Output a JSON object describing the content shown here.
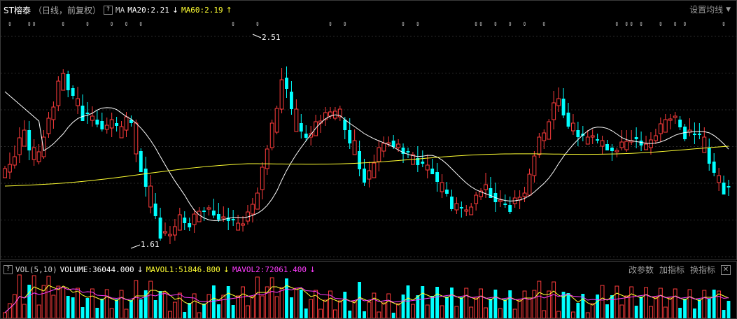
{
  "header": {
    "stock_name": "ST榕泰",
    "period_info": "（日线，前复权）",
    "help_icon": "?",
    "indicator": "MA",
    "ma20_label": "MA20:2.21",
    "ma20_arrow": "↓",
    "ma60_label": "MA60:2.19",
    "ma60_arrow": "↑",
    "settings_label": "设置均线"
  },
  "price_annotations": {
    "high_label": "2.51",
    "low_label": "1.61"
  },
  "volume_header": {
    "help_icon": "?",
    "indicator": "VOL(5,10)",
    "volume_label": "VOLUME:36044.000",
    "volume_arrow": "↓",
    "mavol1_label": "MAVOL1:51846.800",
    "mavol1_arrow": "↓",
    "mavol2_label": "MAVOL2:72061.400",
    "mavol2_arrow": "↓",
    "modify_params": "改参数",
    "add_indicator": "加指标",
    "switch_indicator": "换指标",
    "close_icon": "✕"
  },
  "colors": {
    "up": "#ff3c3c",
    "down": "#00ffff",
    "ma20": "#ffffff",
    "ma60": "#ffff33",
    "mavol2": "#ff3cff",
    "marker": "#cccccc"
  },
  "chart_data": {
    "type": "candlestick",
    "y_high_marked": 2.51,
    "y_low_marked": 1.61,
    "series": [
      {
        "name": "MA20"
      },
      {
        "name": "MA60"
      },
      {
        "name": "VOLUME"
      },
      {
        "name": "MAVOL1"
      },
      {
        "name": "MAVOL2"
      }
    ]
  }
}
